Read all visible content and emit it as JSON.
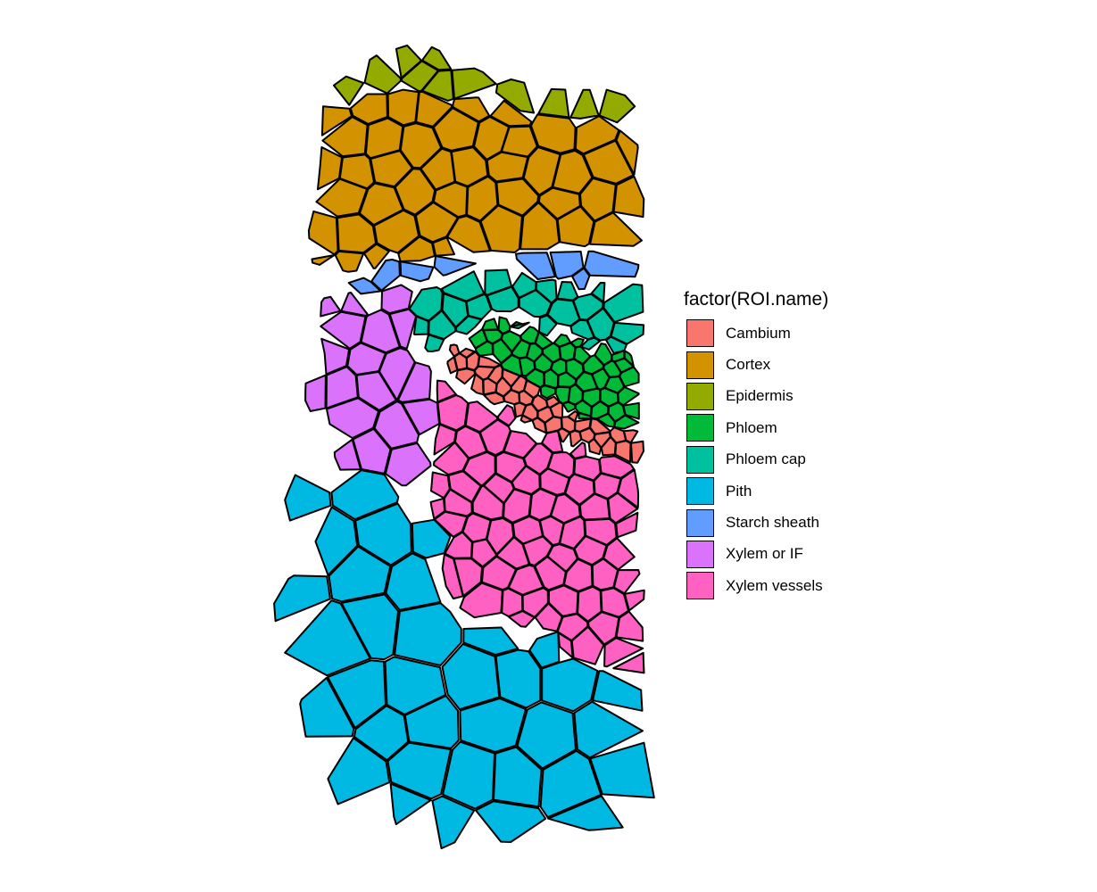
{
  "legend": {
    "title": "factor(ROI.name)",
    "items": [
      {
        "label": "Cambium",
        "color": "#F8766D"
      },
      {
        "label": "Cortex",
        "color": "#D39200"
      },
      {
        "label": "Epidermis",
        "color": "#93AA00"
      },
      {
        "label": "Phloem",
        "color": "#00BA38"
      },
      {
        "label": "Phloem cap",
        "color": "#00C19F"
      },
      {
        "label": "Pith",
        "color": "#00B9E3"
      },
      {
        "label": "Starch sheath",
        "color": "#619CFF"
      },
      {
        "label": "Xylem or IF",
        "color": "#DB72FB"
      },
      {
        "label": "Xylem vessels",
        "color": "#FF61C3"
      }
    ]
  },
  "tissue_layout": [
    {
      "tissue": "Epidermis",
      "seed": 3
    },
    {
      "tissue": "Cortex",
      "seed": 7
    },
    {
      "tissue": "Starch sheath",
      "seed": 11
    },
    {
      "tissue": "Phloem cap",
      "seed": 13
    },
    {
      "tissue": "Phloem",
      "seed": 17
    },
    {
      "tissue": "Cambium",
      "seed": 19
    },
    {
      "tissue": "Xylem or IF",
      "seed": 23
    },
    {
      "tissue": "Xylem vessels",
      "seed": 29
    },
    {
      "tissue": "Pith",
      "seed": 31
    }
  ]
}
